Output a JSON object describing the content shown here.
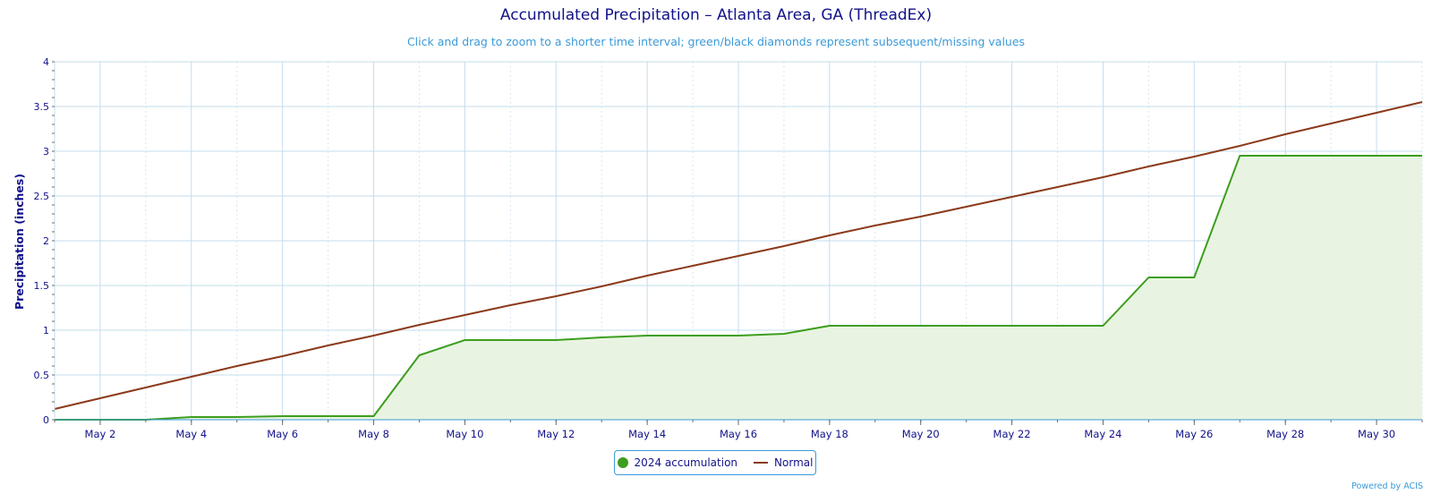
{
  "chart_data": {
    "type": "line",
    "title": "Accumulated Precipitation – Atlanta Area, GA (ThreadEx)",
    "subtitle": "Click and drag to zoom to a shorter time interval; green/black diamonds represent subsequent/missing values",
    "ylabel": "Precipitation (inches)",
    "xlabel": "",
    "ylim": [
      0,
      4
    ],
    "yticks": [
      "0",
      "0.5",
      "1",
      "1.5",
      "2",
      "2.5",
      "3",
      "3.5",
      "4"
    ],
    "xlim": [
      1,
      31
    ],
    "xtick_days": [
      2,
      4,
      6,
      8,
      10,
      12,
      14,
      16,
      18,
      20,
      22,
      24,
      26,
      28,
      30
    ],
    "xtick_labels": [
      "May 2",
      "May 4",
      "May 6",
      "May 8",
      "May 10",
      "May 12",
      "May 14",
      "May 16",
      "May 18",
      "May 20",
      "May 22",
      "May 24",
      "May 26",
      "May 28",
      "May 30"
    ],
    "grid": true,
    "legend_position": "bottom-center",
    "series": [
      {
        "name": "2024 accumulation",
        "color": "#3d9e1f",
        "fill": "#e8f4e1",
        "x": [
          1,
          2,
          3,
          4,
          5,
          6,
          7,
          8,
          9,
          10,
          11,
          12,
          13,
          14,
          15,
          16,
          17,
          18,
          19,
          20,
          21,
          22,
          23,
          24,
          25,
          26,
          27,
          28,
          29,
          30,
          31
        ],
        "values": [
          0,
          0,
          0,
          0.03,
          0.03,
          0.04,
          0.04,
          0.04,
          0.72,
          0.89,
          0.89,
          0.89,
          0.92,
          0.94,
          0.94,
          0.94,
          0.96,
          1.05,
          1.05,
          1.05,
          1.05,
          1.05,
          1.05,
          1.05,
          1.59,
          1.59,
          2.95,
          2.95,
          2.95,
          2.95,
          2.95
        ]
      },
      {
        "name": "Normal",
        "color": "#8b3a1a",
        "x": [
          1,
          2,
          3,
          4,
          5,
          6,
          7,
          8,
          9,
          10,
          11,
          12,
          13,
          14,
          15,
          16,
          17,
          18,
          19,
          20,
          21,
          22,
          23,
          24,
          25,
          26,
          27,
          28,
          29,
          30,
          31
        ],
        "values": [
          0.12,
          0.24,
          0.36,
          0.48,
          0.6,
          0.71,
          0.83,
          0.94,
          1.06,
          1.17,
          1.28,
          1.38,
          1.49,
          1.61,
          1.72,
          1.83,
          1.94,
          2.06,
          2.17,
          2.27,
          2.38,
          2.49,
          2.6,
          2.71,
          2.83,
          2.94,
          3.06,
          3.19,
          3.31,
          3.43,
          3.55
        ]
      }
    ]
  },
  "credits": "Powered by ACIS"
}
